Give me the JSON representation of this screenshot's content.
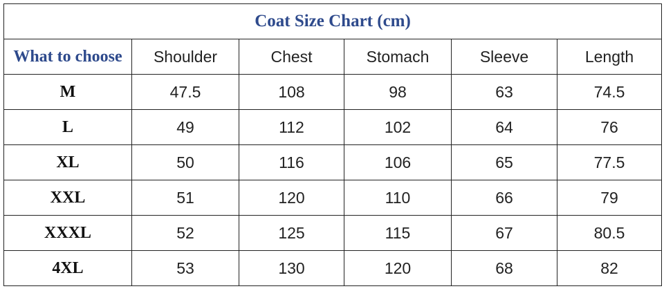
{
  "table": {
    "title": "Coat Size Chart (cm)",
    "header": [
      "What to choose",
      "Shoulder",
      "Chest",
      "Stomach",
      "Sleeve",
      "Length"
    ],
    "rows": [
      [
        "M",
        47.5,
        108,
        98,
        63,
        74.5
      ],
      [
        "L",
        49,
        112,
        102,
        64,
        76
      ],
      [
        "XL",
        50,
        116,
        106,
        65,
        77.5
      ],
      [
        "XXL",
        51,
        120,
        110,
        66,
        79
      ],
      [
        "XXXL",
        52,
        125,
        115,
        67,
        80.5
      ],
      [
        "4XL",
        53,
        130,
        120,
        68,
        82
      ]
    ]
  }
}
